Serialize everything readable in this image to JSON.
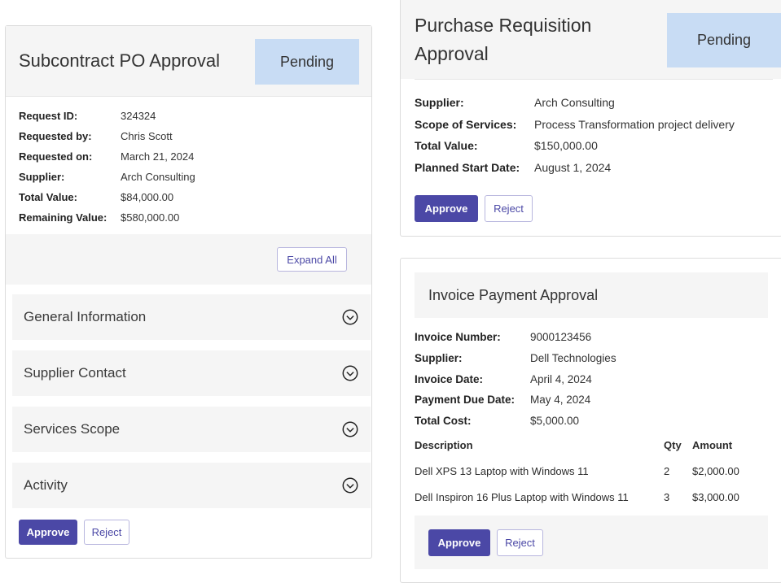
{
  "subcontract": {
    "title": "Subcontract PO Approval",
    "status": "Pending",
    "fields": [
      {
        "label": "Request ID:",
        "value": "324324"
      },
      {
        "label": "Requested by:",
        "value": "Chris Scott"
      },
      {
        "label": "Requested on:",
        "value": "March 21, 2024"
      },
      {
        "label": "Supplier:",
        "value": "Arch Consulting"
      },
      {
        "label": "Total Value:",
        "value": "$84,000.00"
      },
      {
        "label": "Remaining Value:",
        "value": "$580,000.00"
      }
    ],
    "expand_all_label": "Expand All",
    "sections": [
      "General Information",
      "Supplier Contact",
      "Services Scope",
      "Activity"
    ],
    "approve_label": "Approve",
    "reject_label": "Reject"
  },
  "purchase": {
    "title_line1": "Purchase Requisition",
    "title_line2": "Approval",
    "status": "Pending",
    "fields": [
      {
        "label": "Supplier:",
        "value": "Arch Consulting"
      },
      {
        "label": "Scope of Services:",
        "value": "Process Transformation project delivery"
      },
      {
        "label": "Total Value:",
        "value": "$150,000.00"
      },
      {
        "label": "Planned Start Date:",
        "value": "August 1, 2024"
      }
    ],
    "approve_label": "Approve",
    "reject_label": "Reject"
  },
  "invoice": {
    "title": "Invoice Payment Approval",
    "fields": [
      {
        "label": "Invoice Number:",
        "value": "9000123456"
      },
      {
        "label": "Supplier:",
        "value": "Dell Technologies"
      },
      {
        "label": "Invoice Date:",
        "value": "April 4, 2024"
      },
      {
        "label": "Payment Due Date:",
        "value": "May 4, 2024"
      },
      {
        "label": "Total Cost:",
        "value": "$5,000.00"
      }
    ],
    "columns": [
      "Description",
      "Qty",
      "Amount"
    ],
    "items": [
      {
        "description": "Dell XPS 13 Laptop with Windows 11",
        "qty": "2",
        "amount": "$2,000.00"
      },
      {
        "description": "Dell Inspiron 16 Plus Laptop with Windows 11",
        "qty": "3",
        "amount": "$3,000.00"
      }
    ],
    "approve_label": "Approve",
    "reject_label": "Reject"
  },
  "colors": {
    "accent": "#4b48a6",
    "pending_bg": "#c8dcf4",
    "section_bg": "#f5f5f5"
  },
  "icons": {
    "section_toggle": "chevron-down-circle-icon"
  }
}
